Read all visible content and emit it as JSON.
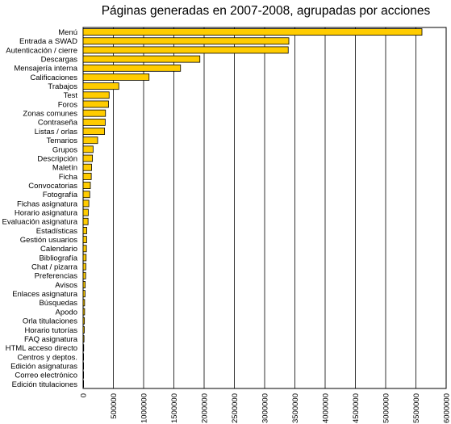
{
  "chart_data": {
    "type": "bar",
    "orientation": "horizontal",
    "title": "Páginas generadas en 2007-2008, agrupadas por acciones",
    "xlabel": "",
    "ylabel": "",
    "xlim": [
      0,
      6000000
    ],
    "ticks": [
      0,
      500000,
      1000000,
      1500000,
      2000000,
      2500000,
      3000000,
      3500000,
      4000000,
      4500000,
      5000000,
      5500000,
      6000000
    ],
    "tick_labels": [
      "0",
      "500000",
      "1000000",
      "1500000",
      "2000000",
      "2500000",
      "3000000",
      "3500000",
      "4000000",
      "4500000",
      "5000000",
      "5500000",
      "6000000"
    ],
    "grid": true,
    "bar_color": "#ffcc00",
    "bar_edge_color": "#000000",
    "categories": [
      "Menú",
      "Entrada a SWAD",
      "Autenticación / cierre",
      "Descargas",
      "Mensajería interna",
      "Calificaciones",
      "Trabajos",
      "Test",
      "Foros",
      "Zonas comunes",
      "Contraseña",
      "Listas / orlas",
      "Temarios",
      "Grupos",
      "Descripción",
      "Maletín",
      "Ficha",
      "Convocatorias",
      "Fotografía",
      "Fichas asignatura",
      "Horario asignatura",
      "Evaluación asignatura",
      "Estadísticas",
      "Gestión usuarios",
      "Calendario",
      "Bibliografía",
      "Chat / pizarra",
      "Preferencias",
      "Avisos",
      "Enlaces asignatura",
      "Búsquedas",
      "Apodo",
      "Orla titulaciones",
      "Horario tutorías",
      "FAQ asignatura",
      "HTML acceso directo",
      "Centros y deptos.",
      "Edición asignaturas",
      "Correo electrónico",
      "Edición titulaciones"
    ],
    "values": [
      5600000,
      3400000,
      3390000,
      1930000,
      1610000,
      1090000,
      590000,
      430000,
      420000,
      370000,
      365000,
      355000,
      240000,
      165000,
      155000,
      140000,
      135000,
      120000,
      110000,
      95000,
      85000,
      82000,
      60000,
      58000,
      55000,
      50000,
      45000,
      42000,
      35000,
      32000,
      25000,
      25000,
      22000,
      20000,
      15000,
      10000,
      8000,
      5000,
      3000,
      2000
    ]
  }
}
